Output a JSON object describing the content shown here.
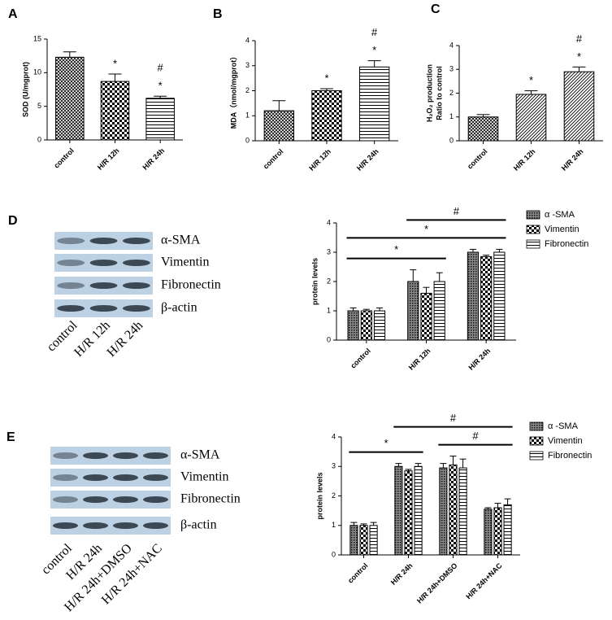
{
  "chart_data": [
    {
      "type": "bar",
      "panel": "A",
      "ylabel": "SOD (U/mgprot)",
      "categories": [
        "control",
        "H/R 12h",
        "H/R 24h"
      ],
      "values": [
        12.3,
        8.7,
        6.2
      ],
      "errors": [
        0.8,
        1.1,
        0.3
      ],
      "patterns": [
        "crosshatch",
        "checker",
        "hlines"
      ],
      "annotations": [
        [],
        [
          "*"
        ],
        [
          "*",
          "#"
        ]
      ],
      "ylim": [
        0,
        15
      ],
      "yticks": [
        0,
        5,
        10,
        15
      ]
    },
    {
      "type": "bar",
      "panel": "B",
      "ylabel": "MDA（nmol/mgprot）",
      "categories": [
        "control",
        "H/R 12h",
        "H/R 24h"
      ],
      "values": [
        1.2,
        2.0,
        2.95
      ],
      "errors": [
        0.4,
        0.08,
        0.25
      ],
      "patterns": [
        "crosshatch",
        "checker",
        "hlines"
      ],
      "annotations": [
        [],
        [
          "*"
        ],
        [
          "*",
          "#"
        ]
      ],
      "ylim": [
        0,
        4
      ],
      "yticks": [
        0,
        1,
        2,
        3,
        4
      ]
    },
    {
      "type": "bar",
      "panel": "C",
      "ylabel": [
        "H₂O₂ production",
        "Ratio to control"
      ],
      "categories": [
        "control",
        "H/R 12h",
        "H/R 24h"
      ],
      "values": [
        1.0,
        1.95,
        2.9
      ],
      "errors": [
        0.1,
        0.15,
        0.2
      ],
      "patterns": [
        "crosshatch",
        "diag",
        "diag"
      ],
      "annotations": [
        [],
        [
          "*"
        ],
        [
          "*",
          "#"
        ]
      ],
      "ylim": [
        0,
        4
      ],
      "yticks": [
        0,
        1,
        2,
        3,
        4
      ]
    },
    {
      "type": "grouped_bar",
      "ylabel": "protein levels",
      "categories": [
        "control",
        "H/R 12h",
        "H/R 24h"
      ],
      "series": [
        {
          "name": "α -SMA",
          "pattern": "dots",
          "values": [
            1,
            2,
            3
          ],
          "errors": [
            0.1,
            0.4,
            0.1
          ]
        },
        {
          "name": "Vimentin",
          "pattern": "checker",
          "values": [
            1,
            1.6,
            2.85
          ],
          "errors": [
            0.05,
            0.2,
            0.05
          ]
        },
        {
          "name": "Fibronectin",
          "pattern": "hlines",
          "values": [
            1,
            2,
            3
          ],
          "errors": [
            0.1,
            0.3,
            0.1
          ]
        }
      ],
      "brackets": [
        {
          "label": "*",
          "from": 0,
          "to": 1
        },
        {
          "label": "*",
          "from": 0,
          "to": 2
        },
        {
          "label": "#",
          "from": 1,
          "to": 2
        }
      ],
      "ylim": [
        0,
        4
      ],
      "yticks": [
        0,
        1,
        2,
        3,
        4
      ]
    },
    {
      "type": "grouped_bar",
      "ylabel": "protein levels",
      "categories": [
        "control",
        "H/R 24h",
        "H/R 24h+DMSO",
        "H/R 24h+NAC"
      ],
      "series": [
        {
          "name": "α -SMA",
          "pattern": "dots",
          "values": [
            1,
            3,
            2.95,
            1.55
          ],
          "errors": [
            0.1,
            0.1,
            0.15,
            0.05
          ]
        },
        {
          "name": "Vimentin",
          "pattern": "checker",
          "values": [
            1,
            2.85,
            3.05,
            1.6
          ],
          "errors": [
            0.05,
            0.05,
            0.3,
            0.15
          ]
        },
        {
          "name": "Fibronectin",
          "pattern": "hlines",
          "values": [
            1,
            3,
            2.95,
            1.7
          ],
          "errors": [
            0.1,
            0.1,
            0.3,
            0.2
          ]
        }
      ],
      "brackets": [
        {
          "label": "*",
          "from": 0,
          "to": 1
        },
        {
          "label": "#",
          "from": 2,
          "to": 3
        },
        {
          "label": "#",
          "from": 1,
          "to": 3
        }
      ],
      "ylim": [
        0,
        4
      ],
      "yticks": [
        0,
        1,
        2,
        3,
        4
      ]
    }
  ],
  "blots": [
    {
      "panel": "D",
      "proteins": [
        "α-SMA",
        "Vimentin",
        "Fibronectin",
        "β-actin"
      ],
      "lanes": [
        "control",
        "H/R 12h",
        "H/R 24h"
      ]
    },
    {
      "panel": "E",
      "proteins": [
        "α-SMA",
        "Vimentin",
        "Fibronectin",
        "β-actin"
      ],
      "lanes": [
        "control",
        "H/R 24h",
        "H/R 24h+DMSO",
        "H/R 24h+NAC"
      ]
    }
  ]
}
